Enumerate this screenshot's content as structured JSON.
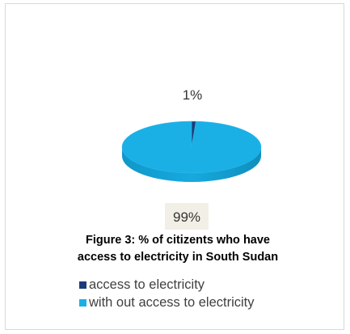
{
  "chart_data": {
    "type": "pie",
    "style": "3d",
    "title": "Figure 3: % of citizents who have access to electricity in  South Sudan",
    "title_lines": [
      "Figure 3: % of citizents who have",
      "access to electricity in  South Sudan"
    ],
    "slices": [
      {
        "label": "access to electricity",
        "value": 1,
        "display": "1%",
        "color": "#1f3a78"
      },
      {
        "label": "with out access to electricity",
        "value": 99,
        "display": "99%",
        "color": "#1ab0e6"
      }
    ],
    "legend_position": "bottom"
  }
}
